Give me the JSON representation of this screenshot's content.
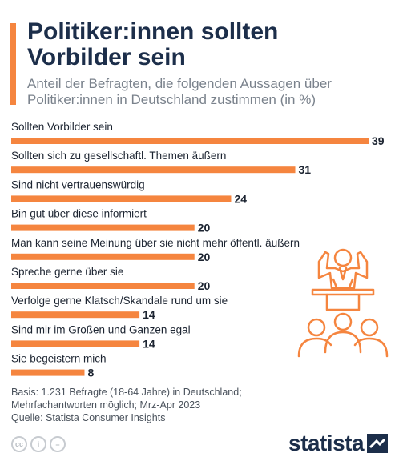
{
  "header": {
    "title": "Politiker:innen sollten Vorbilder sein",
    "subtitle": "Anteil der Befragten, die folgenden Aussagen über Politiker:innen in Deutschland zustimmen (in %)"
  },
  "chart_data": {
    "type": "bar",
    "orientation": "horizontal",
    "categories": [
      "Sollten Vorbilder sein",
      "Sollten sich zu gesellschaftl. Themen äußern",
      "Sind nicht vertrauenswürdig",
      "Bin gut über diese informiert",
      "Man kann seine Meinung über sie nicht mehr öffentl. äußern",
      "Spreche gerne über sie",
      "Verfolge gerne Klatsch/Skandale rund um sie",
      "Sind mir im Großen und Ganzen egal",
      "Sie begeistern mich"
    ],
    "values": [
      39,
      31,
      24,
      20,
      20,
      20,
      14,
      14,
      8
    ],
    "bar_color": "#f5853f",
    "grid": false,
    "legend": "none"
  },
  "footer": {
    "basis": "Basis: 1.231 Befragte (18-64 Jahre) in Deutschland; Mehrfachantworten möglich; Mrz-Apr 2023",
    "source": "Quelle: Statista Consumer Insights",
    "license_icons": [
      "cc-icon",
      "by-icon",
      "nd-icon"
    ],
    "license_glyphs": [
      "cc",
      "i",
      "="
    ],
    "brand": "statista"
  },
  "colors": {
    "accent": "#f5853f",
    "title": "#1c2e4a",
    "subtitle": "#7a828c"
  }
}
